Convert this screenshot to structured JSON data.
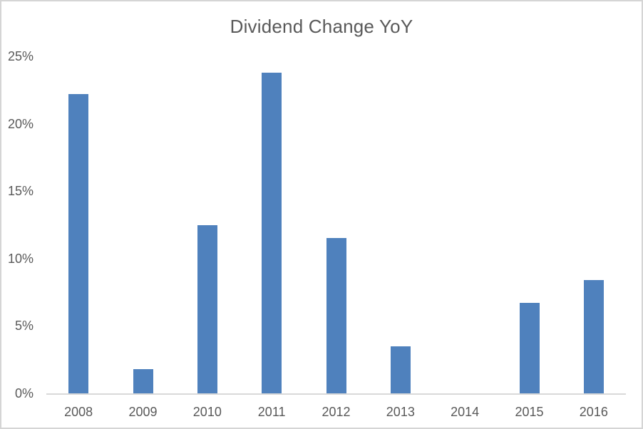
{
  "chart_data": {
    "type": "bar",
    "title": "Dividend Change YoY",
    "categories": [
      "2008",
      "2009",
      "2010",
      "2011",
      "2012",
      "2013",
      "2014",
      "2015",
      "2016"
    ],
    "values": [
      22.2,
      1.8,
      12.5,
      23.8,
      11.5,
      3.5,
      0,
      6.7,
      8.4
    ],
    "value_unit": "%",
    "xlabel": "",
    "ylabel": "",
    "ylim": [
      0,
      25
    ],
    "ytick_values": [
      0,
      5,
      10,
      15,
      20,
      25
    ],
    "ytick_labels": [
      "0%",
      "5%",
      "10%",
      "15%",
      "20%",
      "25%"
    ],
    "grid": false,
    "legend": "none",
    "bar_color": "#4f81bd"
  },
  "colors": {
    "bar": "#4f81bd",
    "title_text": "#595959",
    "axis_text": "#595959",
    "axis_line": "#d9d9d9",
    "frame_border": "#d5d5d5",
    "background": "#ffffff"
  }
}
